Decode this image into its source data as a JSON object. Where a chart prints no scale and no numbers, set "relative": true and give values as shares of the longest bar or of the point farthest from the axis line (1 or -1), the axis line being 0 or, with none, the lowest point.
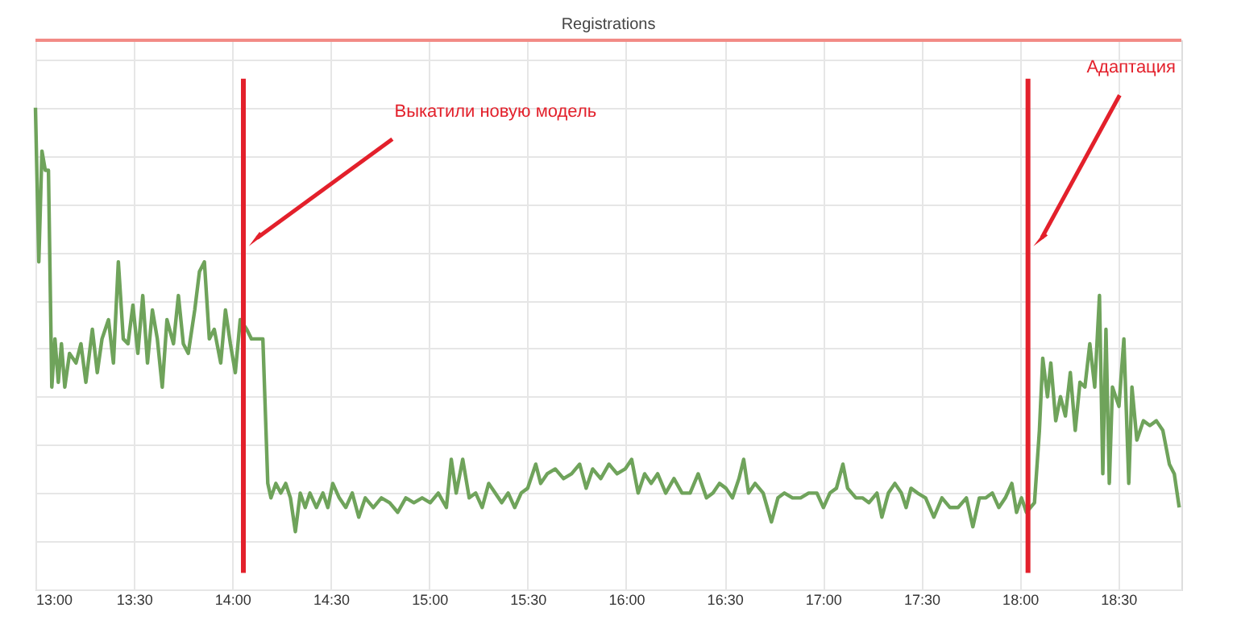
{
  "chart_data": {
    "type": "line",
    "title": "Registrations",
    "relative": true,
    "grid": true,
    "tick_labels": "x",
    "marker": "none",
    "line_style": "solid",
    "xlim": [
      13,
      18.82
    ],
    "xticks": [
      {
        "value": 13,
        "label": "13:00"
      },
      {
        "value": 13.5,
        "label": "13:30"
      },
      {
        "value": 14,
        "label": "14:00"
      },
      {
        "value": 14.5,
        "label": "14:30"
      },
      {
        "value": 15,
        "label": "15:00"
      },
      {
        "value": 15.5,
        "label": "15:30"
      },
      {
        "value": 16,
        "label": "16:00"
      },
      {
        "value": 16.5,
        "label": "16:30"
      },
      {
        "value": 17,
        "label": "17:00"
      },
      {
        "value": 17.5,
        "label": "17:30"
      },
      {
        "value": 18,
        "label": "18:00"
      },
      {
        "value": 18.5,
        "label": "18:30"
      }
    ],
    "ref_lines": [
      {
        "axis": "x",
        "value": 14.056,
        "label": "Выкатили новую модель",
        "color": "#e3202b",
        "line_style": "solid"
      },
      {
        "axis": "x",
        "value": 18.041,
        "label": "Адаптация",
        "color": "#e3202b",
        "line_style": "solid"
      },
      {
        "axis": "y",
        "value": 1.14,
        "color": "#f28b86",
        "line_style": "solid"
      }
    ],
    "series": [
      {
        "color": "#6fa35b",
        "x": [
          13.0,
          13.017,
          13.033,
          13.05,
          13.066,
          13.083,
          13.099,
          13.116,
          13.132,
          13.149,
          13.173,
          13.206,
          13.231,
          13.256,
          13.289,
          13.314,
          13.338,
          13.371,
          13.396,
          13.421,
          13.446,
          13.47,
          13.495,
          13.52,
          13.545,
          13.569,
          13.594,
          13.619,
          13.644,
          13.668,
          13.701,
          13.726,
          13.751,
          13.776,
          13.809,
          13.833,
          13.858,
          13.883,
          13.908,
          13.941,
          13.965,
          13.99,
          14.015,
          14.04,
          14.073,
          14.097,
          14.13,
          14.155,
          14.18,
          14.196,
          14.221,
          14.246,
          14.271,
          14.295,
          14.32,
          14.345,
          14.37,
          14.394,
          14.427,
          14.46,
          14.485,
          14.51,
          14.543,
          14.576,
          14.609,
          14.642,
          14.675,
          14.716,
          14.757,
          14.799,
          14.84,
          14.881,
          14.922,
          14.964,
          15.005,
          15.046,
          15.087,
          15.112,
          15.137,
          15.17,
          15.203,
          15.236,
          15.269,
          15.302,
          15.335,
          15.368,
          15.401,
          15.434,
          15.467,
          15.5,
          15.541,
          15.566,
          15.599,
          15.64,
          15.682,
          15.723,
          15.764,
          15.797,
          15.83,
          15.871,
          15.913,
          15.954,
          15.995,
          16.028,
          16.061,
          16.094,
          16.127,
          16.16,
          16.201,
          16.243,
          16.284,
          16.325,
          16.366,
          16.408,
          16.441,
          16.474,
          16.507,
          16.54,
          16.573,
          16.597,
          16.622,
          16.655,
          16.696,
          16.738,
          16.771,
          16.804,
          16.845,
          16.886,
          16.927,
          16.969,
          17.002,
          17.035,
          17.068,
          17.101,
          17.125,
          17.167,
          17.2,
          17.233,
          17.274,
          17.299,
          17.332,
          17.365,
          17.398,
          17.422,
          17.447,
          17.48,
          17.521,
          17.563,
          17.604,
          17.645,
          17.686,
          17.728,
          17.761,
          17.794,
          17.827,
          17.86,
          17.893,
          17.926,
          17.959,
          17.983,
          18.008,
          18.033,
          18.074,
          18.099,
          18.116,
          18.14,
          18.157,
          18.182,
          18.206,
          18.231,
          18.256,
          18.281,
          18.305,
          18.33,
          18.355,
          18.38,
          18.404,
          18.421,
          18.437,
          18.454,
          18.47,
          18.503,
          18.528,
          18.553,
          18.569,
          18.594,
          18.627,
          18.66,
          18.693,
          18.726,
          18.759,
          18.784,
          18.809
        ],
        "values": [
          1.0,
          0.68,
          0.91,
          0.87,
          0.87,
          0.42,
          0.52,
          0.43,
          0.51,
          0.42,
          0.49,
          0.47,
          0.51,
          0.43,
          0.54,
          0.45,
          0.52,
          0.56,
          0.47,
          0.68,
          0.52,
          0.51,
          0.59,
          0.49,
          0.61,
          0.47,
          0.58,
          0.52,
          0.42,
          0.56,
          0.51,
          0.61,
          0.51,
          0.49,
          0.58,
          0.66,
          0.68,
          0.52,
          0.54,
          0.47,
          0.58,
          0.51,
          0.45,
          0.56,
          0.54,
          0.52,
          0.52,
          0.52,
          0.22,
          0.19,
          0.22,
          0.2,
          0.22,
          0.19,
          0.12,
          0.2,
          0.17,
          0.2,
          0.17,
          0.2,
          0.17,
          0.22,
          0.19,
          0.17,
          0.2,
          0.15,
          0.19,
          0.17,
          0.19,
          0.18,
          0.16,
          0.19,
          0.18,
          0.19,
          0.18,
          0.2,
          0.17,
          0.27,
          0.2,
          0.27,
          0.19,
          0.2,
          0.17,
          0.22,
          0.2,
          0.18,
          0.2,
          0.17,
          0.2,
          0.21,
          0.26,
          0.22,
          0.24,
          0.25,
          0.23,
          0.24,
          0.26,
          0.21,
          0.25,
          0.23,
          0.26,
          0.24,
          0.25,
          0.27,
          0.2,
          0.24,
          0.22,
          0.24,
          0.2,
          0.23,
          0.2,
          0.2,
          0.24,
          0.19,
          0.2,
          0.22,
          0.21,
          0.19,
          0.23,
          0.27,
          0.2,
          0.22,
          0.2,
          0.14,
          0.19,
          0.2,
          0.19,
          0.19,
          0.2,
          0.2,
          0.17,
          0.2,
          0.21,
          0.26,
          0.21,
          0.19,
          0.19,
          0.18,
          0.2,
          0.15,
          0.2,
          0.22,
          0.2,
          0.17,
          0.21,
          0.2,
          0.19,
          0.15,
          0.19,
          0.17,
          0.17,
          0.19,
          0.13,
          0.19,
          0.19,
          0.2,
          0.17,
          0.19,
          0.22,
          0.16,
          0.19,
          0.16,
          0.18,
          0.33,
          0.48,
          0.4,
          0.47,
          0.35,
          0.4,
          0.36,
          0.45,
          0.33,
          0.43,
          0.42,
          0.51,
          0.42,
          0.61,
          0.24,
          0.54,
          0.22,
          0.42,
          0.38,
          0.52,
          0.22,
          0.42,
          0.31,
          0.35,
          0.34,
          0.35,
          0.33,
          0.26,
          0.24,
          0.17
        ]
      }
    ]
  }
}
